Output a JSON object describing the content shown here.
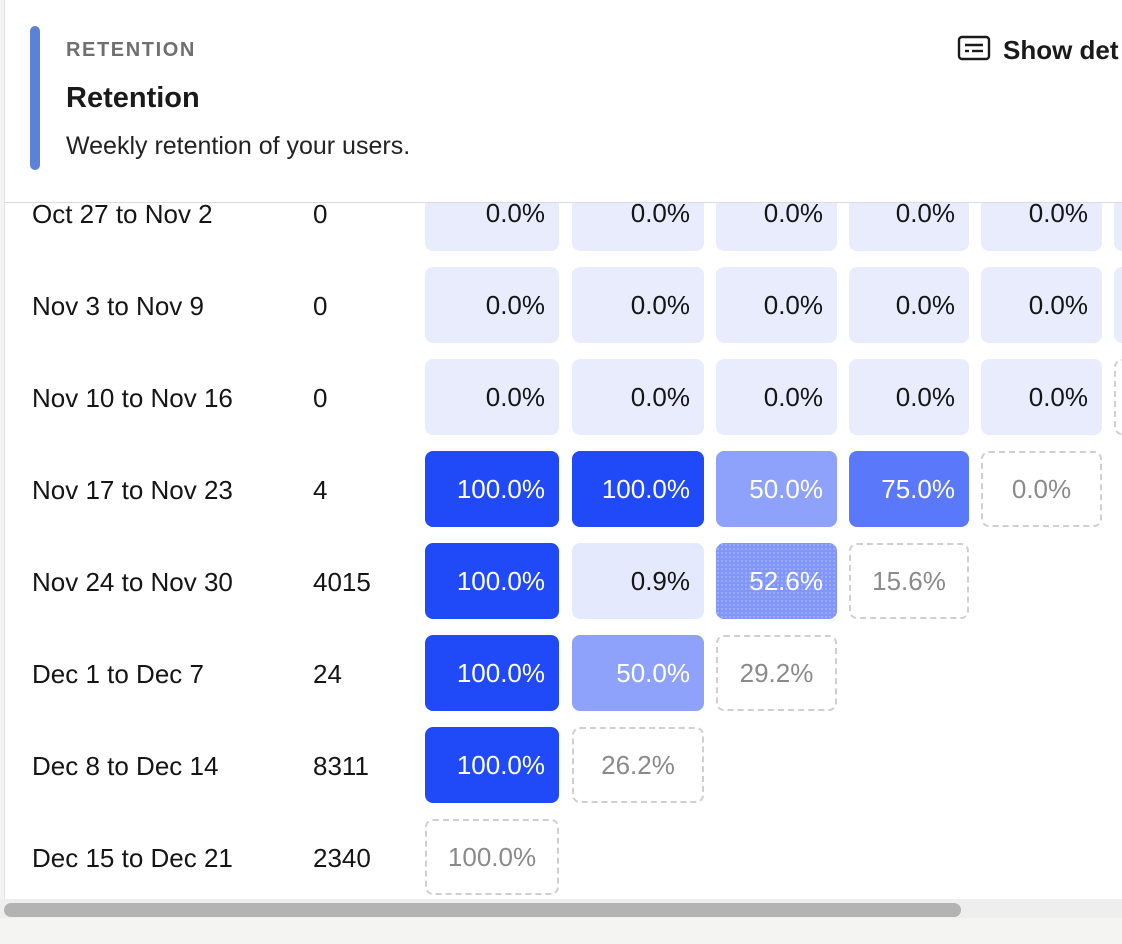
{
  "header": {
    "eyebrow": "RETENTION",
    "title": "Retention",
    "subtitle": "Weekly retention of your users.",
    "show_details_label": "Show det",
    "show_details_icon": "details-panel-icon",
    "accent_color": "#5b82d6"
  },
  "table": {
    "rows": [
      {
        "label": "Oct 27 to Nov 2",
        "size": "0",
        "cells": [
          "0.0%",
          "0.0%",
          "0.0%",
          "0.0%",
          "0.0%"
        ]
      },
      {
        "label": "Nov 3 to Nov 9",
        "size": "0",
        "cells": [
          "0.0%",
          "0.0%",
          "0.0%",
          "0.0%",
          "0.0%"
        ]
      },
      {
        "label": "Nov 10 to Nov 16",
        "size": "0",
        "cells": [
          "0.0%",
          "0.0%",
          "0.0%",
          "0.0%",
          "0.0%"
        ]
      },
      {
        "label": "Nov 17 to Nov 23",
        "size": "4",
        "cells": [
          "100.0%",
          "100.0%",
          "50.0%",
          "75.0%",
          "0.0%"
        ]
      },
      {
        "label": "Nov 24 to Nov 30",
        "size": "4015",
        "cells": [
          "100.0%",
          "0.9%",
          "52.6%",
          "15.6%"
        ]
      },
      {
        "label": "Dec 1 to Dec 7",
        "size": "24",
        "cells": [
          "100.0%",
          "50.0%",
          "29.2%"
        ]
      },
      {
        "label": "Dec 8 to Dec 14",
        "size": "8311",
        "cells": [
          "100.0%",
          "26.2%"
        ]
      },
      {
        "label": "Dec 15 to Dec 21",
        "size": "2340",
        "cells": [
          "100.0%"
        ]
      }
    ]
  },
  "colors": {
    "full": "#2049f8",
    "half": "#8ea2fb",
    "three_quarter": "#5a78fa",
    "zero": "#e8ecfd",
    "partial_border": "#cfcfcf"
  }
}
